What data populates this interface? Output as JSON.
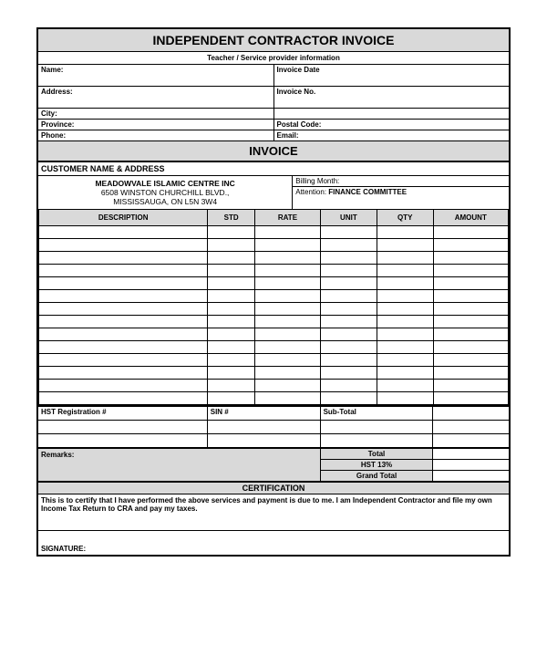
{
  "title": "INDEPENDENT CONTRACTOR INVOICE",
  "subtitle": "Teacher / Service provider information",
  "provider": {
    "name_label": "Name:",
    "address_label": "Address:",
    "city_label": "City:",
    "province_label": "Province:",
    "phone_label": "Phone:",
    "invoice_date_label": "Invoice Date",
    "invoice_no_label": "Invoice No.",
    "postal_label": "Postal Code:",
    "email_label": "Email:"
  },
  "invoice_band": "INVOICE",
  "customer": {
    "header": "CUSTOMER NAME & ADDRESS",
    "name": "MEADOWVALE ISLAMIC CENTRE INC",
    "addr1": "6508 WINSTON CHURCHILL BLVD.,",
    "addr2": "MISSISSAUGA, ON L5N 3W4",
    "billing_month_label": "Billing Month:",
    "attention_label": "Attention:",
    "attention_value": "FINANCE COMMITTEE"
  },
  "columns": {
    "description": "DESCRIPTION",
    "std": "STD",
    "rate": "RATE",
    "unit": "UNIT",
    "qty": "QTY",
    "amount": "AMOUNT"
  },
  "blank_rows": 14,
  "hst": {
    "hst_reg_label": "HST Registration #",
    "sin_label": "SIN #",
    "subtotal_label": "Sub-Total"
  },
  "remarks_label": "Remarks:",
  "totals": {
    "total_label": "Total",
    "hst_label": "HST 13%",
    "grand_label": "Grand Total"
  },
  "cert": {
    "title": "CERTIFICATION",
    "body": "This is to certify that I have performed the above services and payment is due to me. I am Independent Contractor and file my own Income Tax Return to CRA and pay my taxes.",
    "signature_label": "SIGNATURE:"
  },
  "colors": {
    "header_bg": "#d9d9d9",
    "border": "#000000",
    "page_bg": "#ffffff"
  }
}
